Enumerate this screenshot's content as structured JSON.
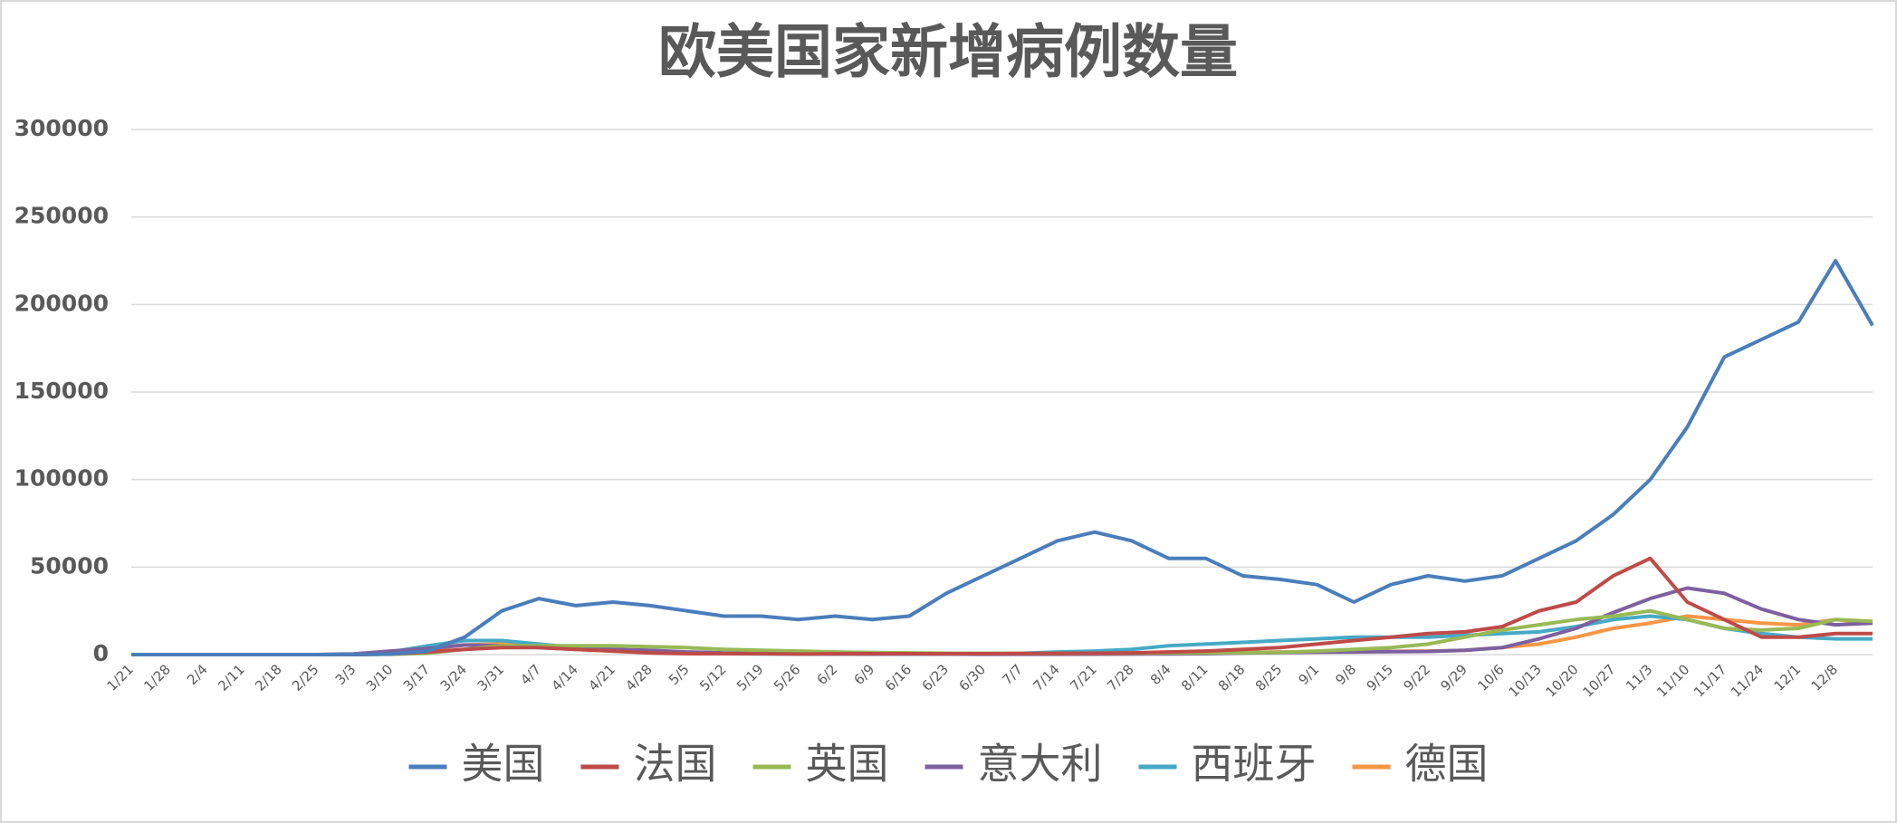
{
  "chart_data": {
    "type": "line",
    "title": "欧美国家新增病例数量",
    "categories": [
      "1/21",
      "1/28",
      "2/4",
      "2/11",
      "2/18",
      "2/25",
      "3/3",
      "3/10",
      "3/17",
      "3/24",
      "3/31",
      "4/7",
      "4/14",
      "4/21",
      "4/28",
      "5/5",
      "5/12",
      "5/19",
      "5/26",
      "6/2",
      "6/9",
      "6/16",
      "6/23",
      "6/30",
      "7/7",
      "7/14",
      "7/21",
      "7/28",
      "8/4",
      "8/11",
      "8/18",
      "8/25",
      "9/1",
      "9/8",
      "9/15",
      "9/22",
      "9/29",
      "10/6",
      "10/13",
      "10/20",
      "10/27",
      "11/3",
      "11/10",
      "11/17",
      "11/24",
      "12/1",
      "12/8",
      null
    ],
    "series": [
      {
        "name": "美国",
        "color": "#4a7ebb",
        "values": [
          0,
          0,
          0,
          0,
          0,
          0,
          50,
          300,
          2000,
          10000,
          25000,
          32000,
          28000,
          30000,
          28000,
          25000,
          22000,
          22000,
          20000,
          22000,
          20000,
          22000,
          35000,
          45000,
          55000,
          65000,
          70000,
          65000,
          55000,
          55000,
          45000,
          43000,
          40000,
          30000,
          40000,
          45000,
          42000,
          45000,
          55000,
          65000,
          80000,
          100000,
          130000,
          170000,
          180000,
          190000,
          225000,
          188000
        ]
      },
      {
        "name": "法国",
        "color": "#be4b48",
        "values": [
          0,
          0,
          0,
          0,
          0,
          0,
          20,
          300,
          1500,
          3000,
          4000,
          4000,
          3000,
          2000,
          1000,
          500,
          500,
          500,
          300,
          500,
          500,
          500,
          500,
          500,
          600,
          700,
          800,
          1000,
          1500,
          2000,
          3000,
          4000,
          6000,
          8000,
          10000,
          12000,
          13000,
          16000,
          25000,
          30000,
          45000,
          55000,
          30000,
          20000,
          10000,
          10000,
          12000,
          12000
        ]
      },
      {
        "name": "英国",
        "color": "#98b954",
        "values": [
          0,
          0,
          0,
          0,
          0,
          0,
          20,
          200,
          800,
          3000,
          5000,
          5000,
          5000,
          5000,
          4500,
          4000,
          3000,
          2500,
          2000,
          1500,
          1200,
          1000,
          800,
          700,
          600,
          600,
          700,
          800,
          900,
          1000,
          1100,
          1300,
          2000,
          3000,
          4000,
          6000,
          10000,
          14000,
          17000,
          20000,
          22000,
          25000,
          20000,
          15000,
          14000,
          15000,
          20000,
          19000
        ]
      },
      {
        "name": "意大利",
        "color": "#7d60a0",
        "values": [
          0,
          0,
          0,
          0,
          0,
          0,
          400,
          2000,
          3500,
          5500,
          5000,
          4000,
          3000,
          3000,
          2500,
          1500,
          1000,
          700,
          500,
          300,
          300,
          300,
          300,
          200,
          200,
          200,
          250,
          300,
          400,
          500,
          900,
          1200,
          1400,
          1500,
          1700,
          1800,
          2500,
          4000,
          9000,
          15000,
          24000,
          32000,
          38000,
          35000,
          26000,
          20000,
          17000,
          18000
        ]
      },
      {
        "name": "西班牙",
        "color": "#46aac5",
        "values": [
          0,
          0,
          0,
          0,
          0,
          0,
          100,
          1500,
          5000,
          8000,
          8000,
          6000,
          4000,
          3000,
          2000,
          1000,
          500,
          400,
          300,
          400,
          300,
          300,
          400,
          500,
          700,
          1500,
          2000,
          3000,
          5000,
          6000,
          7000,
          8000,
          9000,
          10000,
          10000,
          10000,
          11000,
          12000,
          13000,
          16000,
          20000,
          22000,
          20000,
          15000,
          12000,
          10000,
          9000,
          9000
        ]
      },
      {
        "name": "德国",
        "color": "#f79646",
        "values": [
          0,
          0,
          0,
          0,
          0,
          0,
          100,
          1000,
          3000,
          5500,
          6000,
          5000,
          3000,
          2000,
          1500,
          1000,
          800,
          600,
          500,
          400,
          400,
          500,
          500,
          400,
          400,
          500,
          600,
          800,
          900,
          1000,
          1200,
          1500,
          1500,
          1600,
          1800,
          2000,
          2500,
          4000,
          6000,
          10000,
          15000,
          18000,
          22000,
          20000,
          18000,
          17000,
          20000,
          18000
        ]
      }
    ],
    "ylim": [
      0,
      300000
    ],
    "yticks": [
      0,
      50000,
      100000,
      150000,
      200000,
      250000,
      300000
    ],
    "grid": true,
    "legend": "bottom"
  }
}
